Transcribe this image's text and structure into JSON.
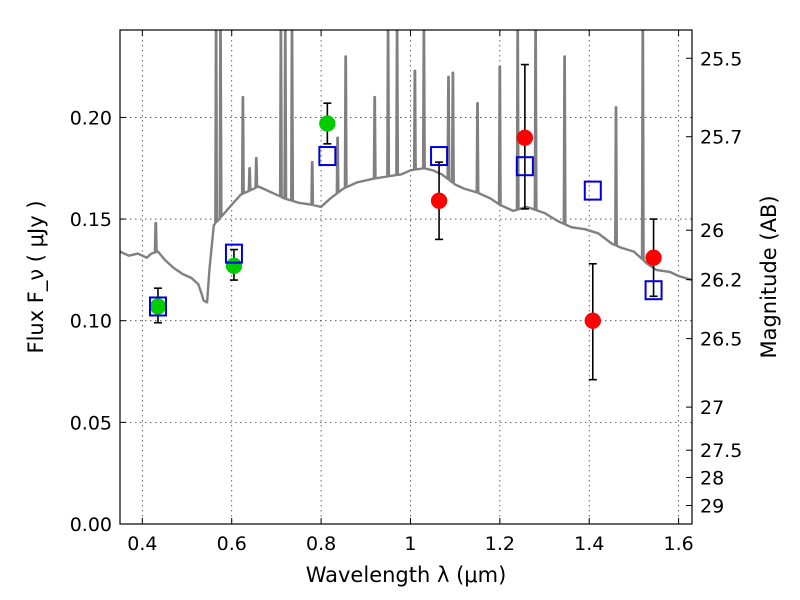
{
  "chart_data": {
    "type": "scatter",
    "title": "",
    "xlabel": "Wavelength  λ (μm)",
    "ylabel": "Flux  F_ν  ( μJy )",
    "y2label": "Magnitude (AB)",
    "xlim": [
      0.35,
      1.63
    ],
    "ylim": [
      0.0,
      0.243
    ],
    "grid": true,
    "x_ticks": [
      0.4,
      0.6,
      0.8,
      1.0,
      1.2,
      1.4,
      1.6
    ],
    "x_tick_labels": [
      "0.4",
      "0.6",
      "0.8",
      "1",
      "1.2",
      "1.4",
      "1.6"
    ],
    "y_ticks": [
      0.0,
      0.05,
      0.1,
      0.15,
      0.2
    ],
    "y_tick_labels": [
      "0.00",
      "0.05",
      "0.10",
      "0.15",
      "0.20"
    ],
    "y2_ticks": [
      {
        "label": "25.5",
        "flux": 0.2291
      },
      {
        "label": "25.7",
        "flux": 0.1905
      },
      {
        "label": "26",
        "flux": 0.1445
      },
      {
        "label": "26.2",
        "flux": 0.1202
      },
      {
        "label": "26.5",
        "flux": 0.0912
      },
      {
        "label": "27",
        "flux": 0.0575
      },
      {
        "label": "27.5",
        "flux": 0.0363
      },
      {
        "label": "28",
        "flux": 0.0229
      },
      {
        "label": "29",
        "flux": 0.0091
      }
    ],
    "series": [
      {
        "marker": "circle",
        "color": "#00cc00",
        "points": [
          {
            "x": 0.435,
            "y": 0.107,
            "yerr": [
              0.099,
              0.116
            ]
          },
          {
            "x": 0.605,
            "y": 0.127,
            "yerr": [
              0.12,
              0.135
            ]
          },
          {
            "x": 0.814,
            "y": 0.197,
            "yerr": [
              0.187,
              0.207
            ]
          }
        ]
      },
      {
        "marker": "circle",
        "color": "#ff0000",
        "points": [
          {
            "x": 1.064,
            "y": 0.159,
            "yerr": [
              0.14,
              0.178
            ]
          },
          {
            "x": 1.256,
            "y": 0.19,
            "yerr": [
              0.155,
              0.226
            ]
          },
          {
            "x": 1.408,
            "y": 0.1,
            "yerr": [
              0.071,
              0.128
            ]
          },
          {
            "x": 1.544,
            "y": 0.131,
            "yerr": [
              0.112,
              0.15
            ]
          }
        ]
      },
      {
        "marker": "open-square",
        "color": "#0000dd",
        "points": [
          {
            "x": 0.435,
            "y": 0.107
          },
          {
            "x": 0.605,
            "y": 0.133
          },
          {
            "x": 0.814,
            "y": 0.181
          },
          {
            "x": 1.064,
            "y": 0.181
          },
          {
            "x": 1.256,
            "y": 0.176
          },
          {
            "x": 1.408,
            "y": 0.164
          },
          {
            "x": 1.544,
            "y": 0.115
          }
        ]
      }
    ],
    "model_spectrum": {
      "color": "#808080",
      "continuum": [
        [
          0.35,
          0.134
        ],
        [
          0.37,
          0.132
        ],
        [
          0.39,
          0.133
        ],
        [
          0.41,
          0.131
        ],
        [
          0.42,
          0.133
        ],
        [
          0.435,
          0.134
        ],
        [
          0.45,
          0.13
        ],
        [
          0.47,
          0.126
        ],
        [
          0.49,
          0.123
        ],
        [
          0.51,
          0.121
        ],
        [
          0.525,
          0.118
        ],
        [
          0.533,
          0.113
        ],
        [
          0.537,
          0.11
        ],
        [
          0.545,
          0.109
        ],
        [
          0.55,
          0.125
        ],
        [
          0.56,
          0.147
        ],
        [
          0.58,
          0.152
        ],
        [
          0.6,
          0.157
        ],
        [
          0.62,
          0.162
        ],
        [
          0.64,
          0.164
        ],
        [
          0.66,
          0.166
        ],
        [
          0.68,
          0.164
        ],
        [
          0.7,
          0.162
        ],
        [
          0.72,
          0.16
        ],
        [
          0.75,
          0.158
        ],
        [
          0.78,
          0.157
        ],
        [
          0.8,
          0.156
        ],
        [
          0.82,
          0.16
        ],
        [
          0.85,
          0.165
        ],
        [
          0.88,
          0.168
        ],
        [
          0.92,
          0.17
        ],
        [
          0.95,
          0.171
        ],
        [
          0.98,
          0.172
        ],
        [
          1.0,
          0.174
        ],
        [
          1.03,
          0.175
        ],
        [
          1.05,
          0.174
        ],
        [
          1.07,
          0.172
        ],
        [
          1.1,
          0.167
        ],
        [
          1.12,
          0.165
        ],
        [
          1.15,
          0.163
        ],
        [
          1.18,
          0.16
        ],
        [
          1.2,
          0.157
        ],
        [
          1.23,
          0.154
        ],
        [
          1.26,
          0.156
        ],
        [
          1.3,
          0.153
        ],
        [
          1.33,
          0.149
        ],
        [
          1.36,
          0.146
        ],
        [
          1.39,
          0.145
        ],
        [
          1.42,
          0.143
        ],
        [
          1.45,
          0.138
        ],
        [
          1.47,
          0.136
        ],
        [
          1.5,
          0.134
        ],
        [
          1.53,
          0.128
        ],
        [
          1.55,
          0.125
        ],
        [
          1.58,
          0.124
        ],
        [
          1.6,
          0.122
        ],
        [
          1.63,
          0.12
        ]
      ],
      "emission_lines": [
        {
          "x": 0.43,
          "peak": 0.148
        },
        {
          "x": 0.565,
          "peak": 0.243
        },
        {
          "x": 0.575,
          "peak": 0.243
        },
        {
          "x": 0.625,
          "peak": 0.21
        },
        {
          "x": 0.64,
          "peak": 0.175
        },
        {
          "x": 0.655,
          "peak": 0.18
        },
        {
          "x": 0.71,
          "peak": 0.243
        },
        {
          "x": 0.72,
          "peak": 0.243
        },
        {
          "x": 0.735,
          "peak": 0.243
        },
        {
          "x": 0.78,
          "peak": 0.178
        },
        {
          "x": 0.837,
          "peak": 0.19
        },
        {
          "x": 0.855,
          "peak": 0.23
        },
        {
          "x": 0.92,
          "peak": 0.21
        },
        {
          "x": 0.95,
          "peak": 0.243
        },
        {
          "x": 0.97,
          "peak": 0.243
        },
        {
          "x": 1.01,
          "peak": 0.223
        },
        {
          "x": 1.03,
          "peak": 0.243
        },
        {
          "x": 1.085,
          "peak": 0.22
        },
        {
          "x": 1.095,
          "peak": 0.222
        },
        {
          "x": 1.15,
          "peak": 0.207
        },
        {
          "x": 1.2,
          "peak": 0.225
        },
        {
          "x": 1.24,
          "peak": 0.243
        },
        {
          "x": 1.28,
          "peak": 0.243
        },
        {
          "x": 1.345,
          "peak": 0.23
        },
        {
          "x": 1.46,
          "peak": 0.205
        },
        {
          "x": 1.52,
          "peak": 0.243
        }
      ]
    }
  }
}
